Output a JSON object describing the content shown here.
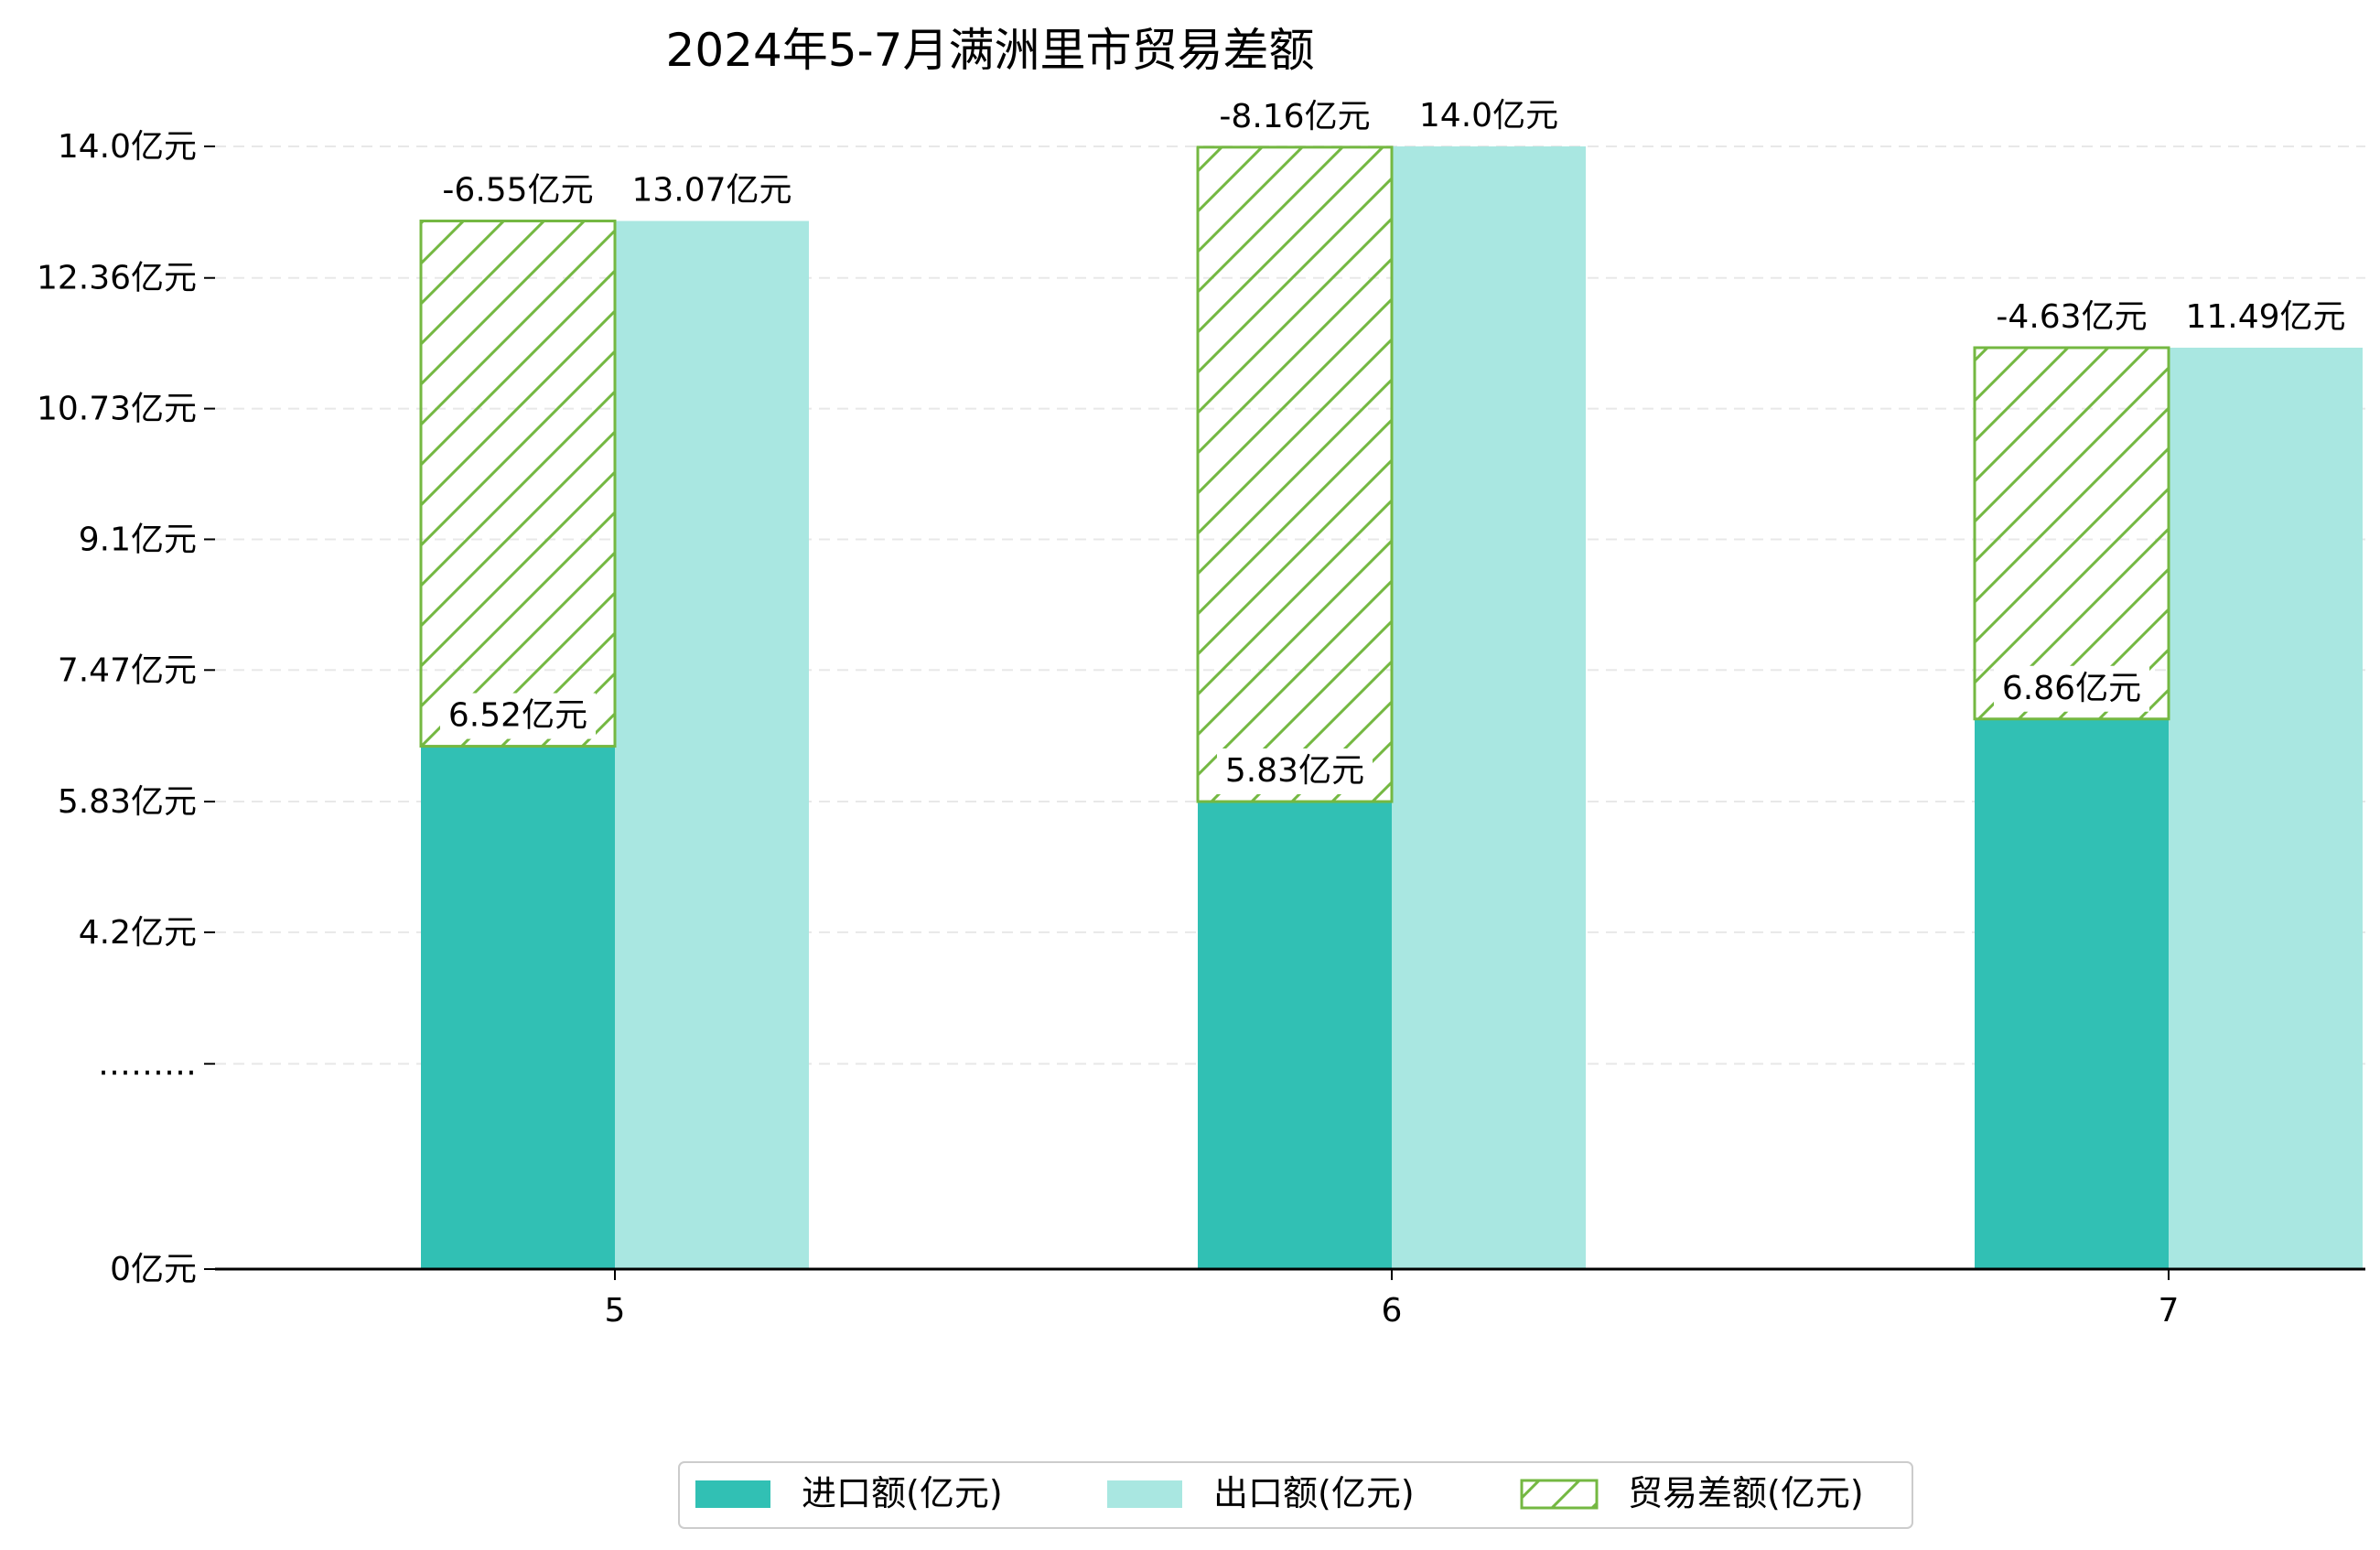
{
  "chart_data": {
    "type": "bar",
    "title": "2024年5-7月满洲里市贸易差额",
    "categories": [
      "5",
      "6",
      "7"
    ],
    "series": [
      {
        "name": "进口额(亿元)",
        "values": [
          6.52,
          5.83,
          6.86
        ],
        "color": "#31c0b4"
      },
      {
        "name": "出口额(亿元)",
        "values": [
          13.07,
          14.0,
          11.49
        ],
        "color": "#a9e7e1"
      },
      {
        "name": "贸易差额(亿元)",
        "values": [
          -6.55,
          -8.16,
          -4.63
        ],
        "color": "#74b842",
        "pattern": "diagonal-hatch"
      }
    ],
    "data_labels": {
      "import": [
        "6.52亿元",
        "5.83亿元",
        "6.86亿元"
      ],
      "export": [
        "13.07亿元",
        "14.0亿元",
        "11.49亿元"
      ],
      "balance": [
        "-6.55亿元",
        "-8.16亿元",
        "-4.63亿元"
      ]
    },
    "y_ticks": [
      {
        "value": 0,
        "label": "0亿元"
      },
      {
        "value": 2.56,
        "label": "………"
      },
      {
        "value": 4.2,
        "label": "4.2亿元"
      },
      {
        "value": 5.83,
        "label": "5.83亿元"
      },
      {
        "value": 7.47,
        "label": "7.47亿元"
      },
      {
        "value": 9.1,
        "label": "9.1亿元"
      },
      {
        "value": 10.73,
        "label": "10.73亿元"
      },
      {
        "value": 12.36,
        "label": "12.36亿元"
      },
      {
        "value": 14.0,
        "label": "14.0亿元"
      }
    ],
    "ylim": [
      0,
      14.0
    ],
    "y_axis_note": "axis broken between 0 and 4.2",
    "grid": "horizontal dashed",
    "legend_position": "bottom-center"
  }
}
